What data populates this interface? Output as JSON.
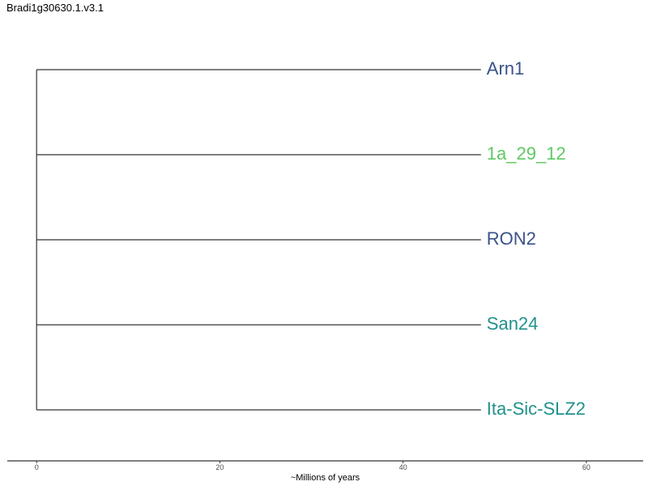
{
  "header": {
    "title": "Bradi1g30630.1.v3.1"
  },
  "chart_data": {
    "type": "dendrogram",
    "xlabel": "~Millions of years",
    "xlim": [
      -3.2,
      66.2
    ],
    "xticks": [
      0,
      20,
      40,
      60
    ],
    "root_x": 0,
    "tip_x": 48.5,
    "tips": [
      {
        "label": "Arn1",
        "color": "#3b528b"
      },
      {
        "label": "1a_29_12",
        "color": "#5ec962"
      },
      {
        "label": "RON2",
        "color": "#3b528b"
      },
      {
        "label": "San24",
        "color": "#21918c"
      },
      {
        "label": "Ita-Sic-SLZ2",
        "color": "#21918c"
      }
    ],
    "line_color": "#333333",
    "axis_color": "#333333"
  }
}
